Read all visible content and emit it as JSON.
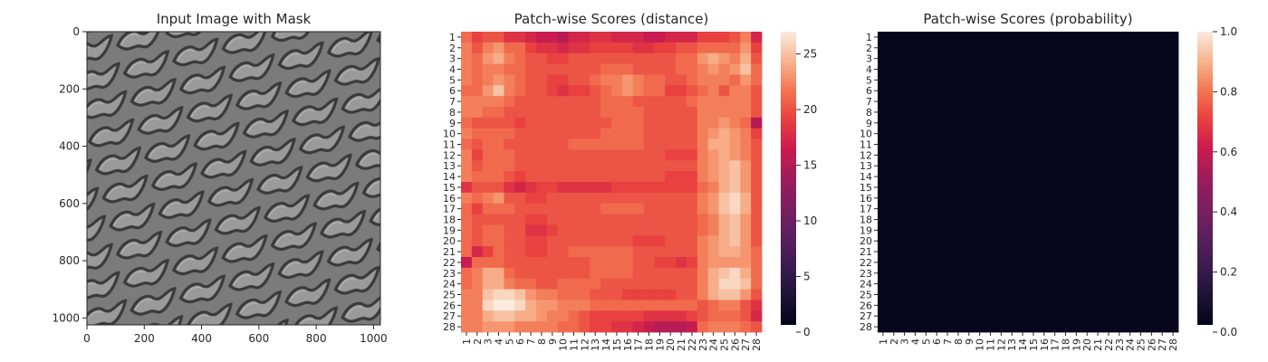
{
  "chart_data": [
    {
      "type": "image",
      "title": "Input Image with Mask",
      "image_description": "Grayscale texture with diagonal rows of rounded diamond-shaped cells",
      "x_ticks": [
        0,
        200,
        400,
        600,
        800,
        1000
      ],
      "y_ticks": [
        0,
        200,
        400,
        600,
        800,
        1000
      ],
      "xlim": [
        0,
        1024
      ],
      "ylim": [
        1024,
        0
      ]
    },
    {
      "type": "heatmap",
      "title": "Patch-wise Scores (distance)",
      "x_labels": [
        "1",
        "2",
        "3",
        "4",
        "5",
        "6",
        "7",
        "8",
        "9",
        "10",
        "11",
        "12",
        "13",
        "14",
        "15",
        "16",
        "17",
        "18",
        "19",
        "20",
        "21",
        "22",
        "23",
        "24",
        "25",
        "26",
        "27",
        "28"
      ],
      "y_labels": [
        "1",
        "2",
        "3",
        "4",
        "5",
        "6",
        "7",
        "8",
        "9",
        "10",
        "11",
        "12",
        "13",
        "14",
        "15",
        "16",
        "17",
        "18",
        "19",
        "20",
        "21",
        "22",
        "23",
        "24",
        "25",
        "26",
        "27",
        "28"
      ],
      "colorbar": {
        "min": 0,
        "max": 27,
        "ticks": [
          0,
          5,
          10,
          15,
          20,
          25
        ],
        "colormap": "rocket"
      },
      "values": [
        [
          21,
          19,
          20,
          20,
          18,
          18,
          17,
          16,
          16,
          15,
          17,
          17,
          18,
          18,
          17,
          17,
          17,
          16,
          16,
          17,
          17,
          17,
          19,
          19,
          19,
          20,
          22,
          17
        ],
        [
          22,
          20,
          22,
          23,
          21,
          21,
          19,
          18,
          18,
          17,
          18,
          18,
          19,
          19,
          19,
          19,
          18,
          18,
          19,
          19,
          20,
          20,
          21,
          21,
          21,
          21,
          23,
          19
        ],
        [
          22,
          21,
          23,
          24,
          22,
          21,
          20,
          20,
          19,
          19,
          20,
          20,
          20,
          20,
          20,
          20,
          20,
          20,
          20,
          20,
          21,
          21,
          23,
          24,
          23,
          22,
          24,
          20
        ],
        [
          22,
          21,
          22,
          22,
          21,
          21,
          20,
          20,
          20,
          20,
          20,
          20,
          20,
          21,
          21,
          21,
          20,
          20,
          20,
          20,
          21,
          21,
          22,
          23,
          22,
          23,
          25,
          21
        ],
        [
          22,
          21,
          22,
          23,
          22,
          21,
          20,
          20,
          19,
          19,
          20,
          20,
          21,
          22,
          22,
          23,
          22,
          21,
          21,
          20,
          20,
          21,
          22,
          22,
          22,
          21,
          23,
          21
        ],
        [
          21,
          21,
          23,
          25,
          22,
          21,
          20,
          20,
          19,
          18,
          19,
          19,
          20,
          21,
          22,
          23,
          22,
          21,
          21,
          19,
          19,
          20,
          21,
          22,
          20,
          22,
          22,
          20
        ],
        [
          22,
          22,
          22,
          22,
          21,
          20,
          20,
          20,
          20,
          20,
          20,
          20,
          20,
          21,
          21,
          21,
          20,
          20,
          20,
          20,
          20,
          21,
          22,
          22,
          22,
          22,
          22,
          20
        ],
        [
          22,
          22,
          21,
          21,
          20,
          20,
          20,
          20,
          20,
          20,
          20,
          20,
          20,
          21,
          21,
          21,
          21,
          20,
          20,
          20,
          20,
          20,
          22,
          22,
          22,
          22,
          22,
          20
        ],
        [
          21,
          20,
          20,
          20,
          20,
          19,
          20,
          20,
          20,
          20,
          20,
          20,
          20,
          20,
          21,
          21,
          21,
          20,
          20,
          20,
          20,
          20,
          22,
          22,
          23,
          22,
          21,
          15
        ],
        [
          22,
          21,
          21,
          21,
          21,
          20,
          20,
          20,
          20,
          20,
          20,
          20,
          20,
          21,
          21,
          21,
          21,
          20,
          20,
          20,
          20,
          20,
          22,
          23,
          24,
          23,
          22,
          19
        ],
        [
          21,
          20,
          21,
          21,
          20,
          20,
          20,
          20,
          20,
          20,
          21,
          21,
          21,
          21,
          21,
          21,
          21,
          20,
          20,
          20,
          20,
          20,
          22,
          24,
          24,
          23,
          22,
          20
        ],
        [
          22,
          19,
          21,
          21,
          21,
          20,
          20,
          20,
          20,
          20,
          20,
          20,
          20,
          20,
          20,
          20,
          20,
          20,
          20,
          19,
          19,
          19,
          22,
          23,
          24,
          23,
          22,
          20
        ],
        [
          22,
          20,
          21,
          21,
          21,
          20,
          20,
          20,
          20,
          20,
          20,
          20,
          20,
          20,
          20,
          20,
          20,
          20,
          20,
          20,
          20,
          20,
          22,
          23,
          24,
          25,
          23,
          20
        ],
        [
          22,
          21,
          21,
          21,
          20,
          19,
          20,
          20,
          20,
          20,
          20,
          20,
          20,
          20,
          20,
          20,
          20,
          20,
          20,
          19,
          19,
          19,
          22,
          23,
          24,
          25,
          23,
          20
        ],
        [
          18,
          20,
          20,
          20,
          18,
          17,
          18,
          19,
          19,
          18,
          18,
          18,
          18,
          18,
          19,
          19,
          19,
          19,
          19,
          19,
          19,
          19,
          21,
          22,
          24,
          25,
          23,
          20
        ],
        [
          22,
          21,
          22,
          23,
          20,
          20,
          19,
          19,
          20,
          20,
          20,
          20,
          20,
          20,
          20,
          20,
          20,
          20,
          20,
          20,
          20,
          20,
          22,
          23,
          25,
          26,
          24,
          20
        ],
        [
          21,
          19,
          21,
          21,
          21,
          20,
          20,
          20,
          20,
          20,
          20,
          20,
          20,
          21,
          21,
          21,
          21,
          20,
          20,
          20,
          20,
          20,
          22,
          23,
          25,
          26,
          24,
          20
        ],
        [
          21,
          20,
          20,
          20,
          20,
          20,
          19,
          19,
          20,
          20,
          20,
          20,
          20,
          20,
          20,
          20,
          20,
          20,
          20,
          20,
          20,
          20,
          21,
          22,
          24,
          25,
          23,
          20
        ],
        [
          21,
          20,
          21,
          21,
          20,
          20,
          18,
          18,
          19,
          20,
          20,
          20,
          20,
          20,
          20,
          20,
          20,
          20,
          20,
          20,
          20,
          20,
          21,
          22,
          24,
          25,
          23,
          20
        ],
        [
          21,
          20,
          21,
          21,
          20,
          20,
          19,
          19,
          20,
          20,
          20,
          20,
          20,
          20,
          20,
          20,
          19,
          19,
          19,
          20,
          20,
          20,
          22,
          23,
          24,
          25,
          23,
          20
        ],
        [
          21,
          17,
          19,
          21,
          20,
          20,
          19,
          19,
          20,
          20,
          21,
          21,
          21,
          21,
          21,
          21,
          20,
          20,
          20,
          20,
          20,
          20,
          22,
          23,
          24,
          24,
          23,
          21
        ],
        [
          16,
          21,
          21,
          21,
          20,
          20,
          20,
          20,
          20,
          20,
          20,
          20,
          21,
          21,
          21,
          21,
          20,
          20,
          19,
          19,
          18,
          19,
          22,
          23,
          23,
          23,
          23,
          21
        ],
        [
          21,
          22,
          24,
          24,
          21,
          20,
          20,
          20,
          20,
          20,
          20,
          20,
          21,
          21,
          21,
          21,
          20,
          20,
          20,
          20,
          20,
          20,
          22,
          24,
          25,
          26,
          24,
          21
        ],
        [
          21,
          22,
          24,
          24,
          22,
          21,
          21,
          20,
          20,
          21,
          21,
          21,
          21,
          20,
          20,
          20,
          20,
          20,
          20,
          20,
          20,
          20,
          22,
          24,
          26,
          26,
          25,
          21
        ],
        [
          22,
          22,
          25,
          26,
          26,
          25,
          23,
          22,
          22,
          21,
          21,
          21,
          20,
          20,
          20,
          19,
          19,
          19,
          19,
          19,
          20,
          20,
          22,
          24,
          25,
          25,
          23,
          20
        ],
        [
          22,
          22,
          26,
          27,
          27,
          26,
          24,
          23,
          23,
          22,
          22,
          22,
          21,
          21,
          21,
          21,
          21,
          21,
          21,
          21,
          21,
          21,
          20,
          21,
          22,
          22,
          20,
          18
        ],
        [
          22,
          22,
          24,
          25,
          25,
          24,
          24,
          23,
          22,
          22,
          21,
          20,
          19,
          19,
          19,
          19,
          19,
          18,
          18,
          18,
          18,
          19,
          20,
          21,
          21,
          21,
          20,
          17
        ],
        [
          22,
          22,
          23,
          23,
          23,
          22,
          22,
          22,
          22,
          21,
          21,
          20,
          19,
          19,
          18,
          18,
          17,
          16,
          15,
          15,
          15,
          16,
          21,
          22,
          22,
          22,
          21,
          20
        ]
      ]
    },
    {
      "type": "heatmap",
      "title": "Patch-wise Scores (probability)",
      "x_labels": [
        "1",
        "2",
        "3",
        "4",
        "5",
        "6",
        "7",
        "8",
        "9",
        "10",
        "11",
        "12",
        "13",
        "14",
        "15",
        "16",
        "17",
        "18",
        "19",
        "20",
        "21",
        "22",
        "23",
        "24",
        "25",
        "26",
        "27",
        "28"
      ],
      "y_labels": [
        "1",
        "2",
        "3",
        "4",
        "5",
        "6",
        "7",
        "8",
        "9",
        "10",
        "11",
        "12",
        "13",
        "14",
        "15",
        "16",
        "17",
        "18",
        "19",
        "20",
        "21",
        "22",
        "23",
        "24",
        "25",
        "26",
        "27",
        "28"
      ],
      "colorbar": {
        "min": 0.0,
        "max": 1.0,
        "ticks": [
          "0.0",
          "0.2",
          "0.4",
          "0.6",
          "0.8",
          "1.0"
        ],
        "colormap": "rocket"
      },
      "uniform_value": 0.01
    }
  ]
}
